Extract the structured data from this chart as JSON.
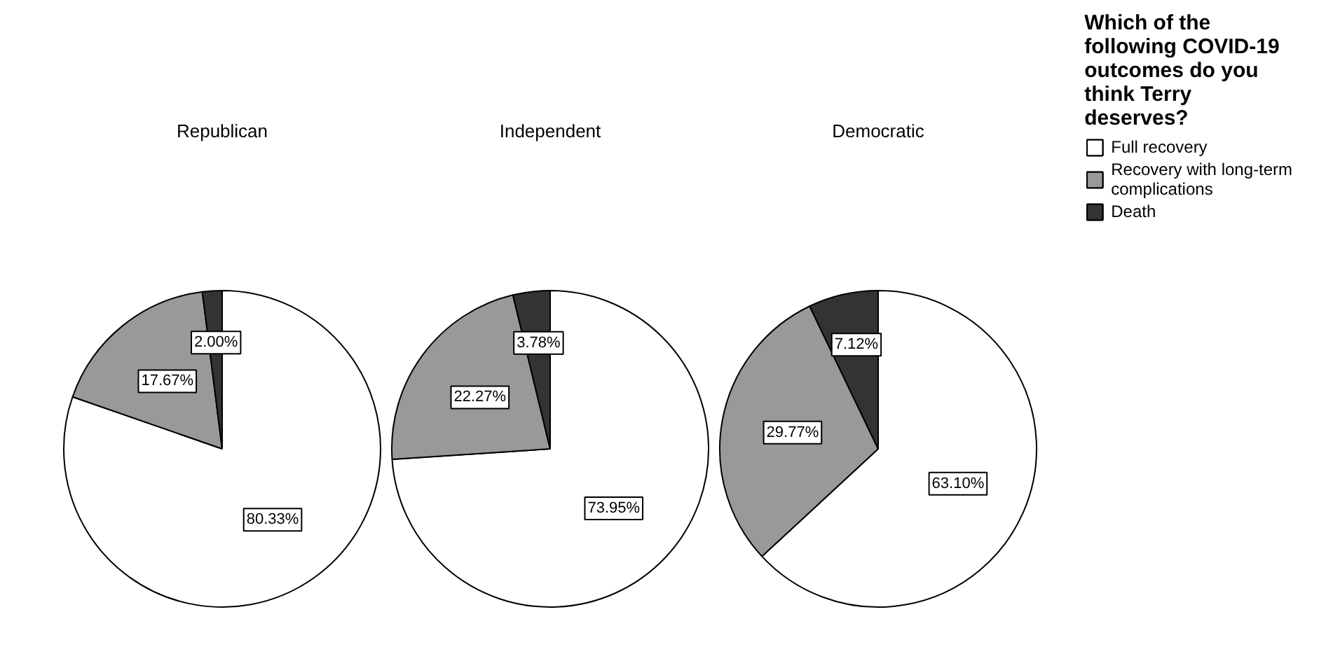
{
  "chart_data": [
    {
      "type": "pie",
      "title": "Republican",
      "categories": [
        "Full recovery",
        "Recovery with long-term complications",
        "Death"
      ],
      "values": [
        80.33,
        17.67,
        2.0
      ],
      "value_labels": [
        "80.33%",
        "17.67%",
        "2.00%"
      ],
      "colors": [
        "#ffffff",
        "#999999",
        "#333333"
      ],
      "legend": "right",
      "legend_title": "Which of the following COVID-19 outcomes do you think Terry deserves?"
    },
    {
      "type": "pie",
      "title": "Independent",
      "categories": [
        null,
        null,
        null
      ],
      "values": [
        73.95,
        22.27,
        3.78
      ],
      "value_labels": [
        "73.95%",
        "22.27%",
        "3.78%"
      ],
      "colors": [
        "#ffffff",
        "#999999",
        "#333333"
      ]
    },
    {
      "type": "pie",
      "title": "Democratic",
      "categories": [
        null,
        null,
        null
      ],
      "values": [
        63.1,
        29.77,
        7.12
      ],
      "value_labels": [
        "63.10%",
        "29.77%",
        "7.12%"
      ],
      "colors": [
        "#ffffff",
        "#999999",
        "#333333"
      ]
    }
  ]
}
